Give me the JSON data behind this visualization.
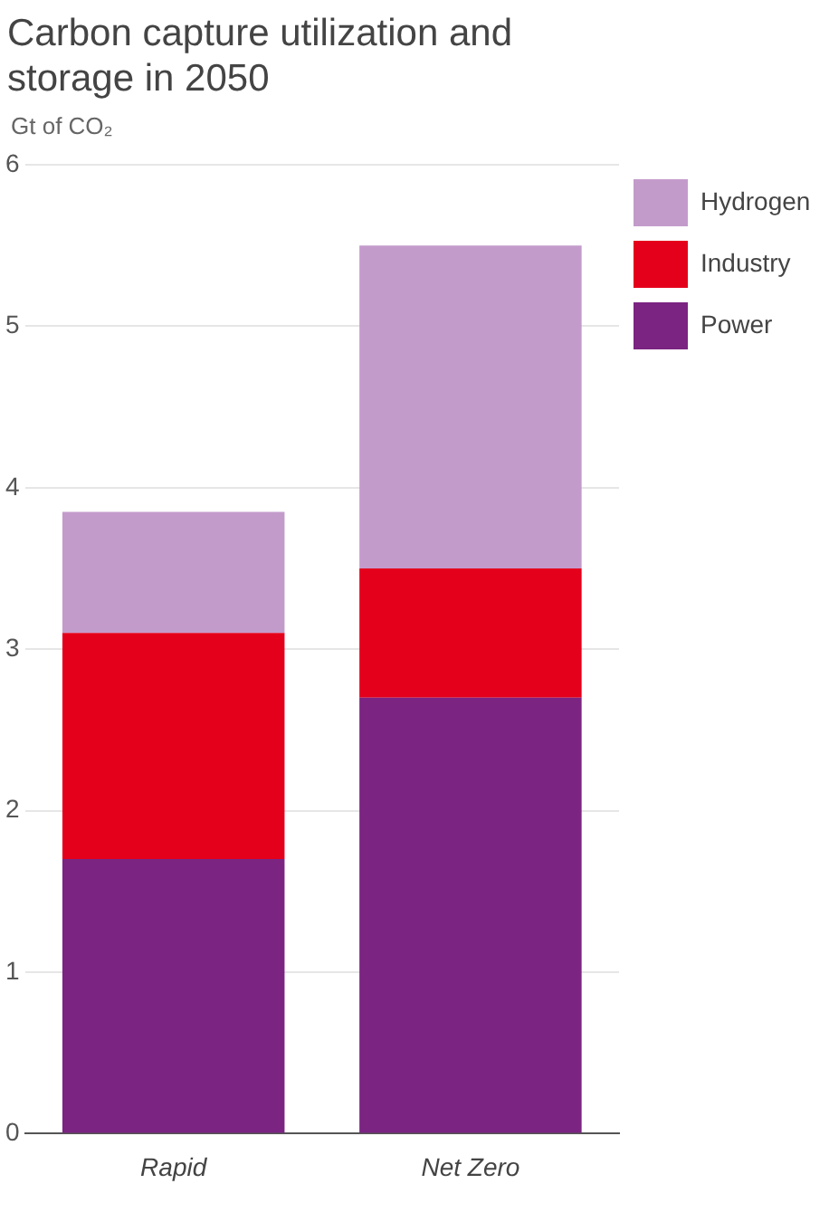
{
  "chart_data": {
    "type": "bar",
    "title": "Carbon capture utilization and storage in 2050",
    "subtitle": "Gt of CO₂",
    "categories": [
      "Rapid",
      "Net Zero"
    ],
    "series": [
      {
        "name": "Power",
        "color": "#7b2482",
        "values": [
          1.7,
          2.7
        ]
      },
      {
        "name": "Industry",
        "color": "#e4001b",
        "values": [
          1.4,
          0.8
        ]
      },
      {
        "name": "Hydrogen",
        "color": "#c39bcb",
        "values": [
          0.75,
          2.0
        ]
      }
    ],
    "stacked": true,
    "ylim": [
      0,
      6
    ],
    "yticks": [
      0,
      1,
      2,
      3,
      4,
      5,
      6
    ],
    "grid": "y",
    "legend": "top right"
  }
}
